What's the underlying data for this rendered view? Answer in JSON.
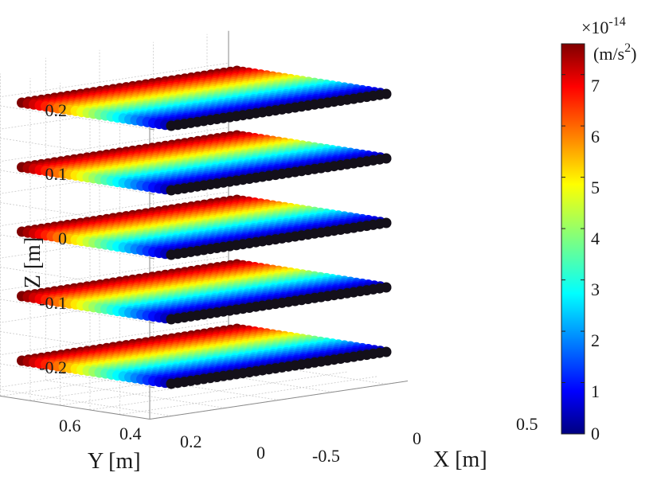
{
  "chart_data": {
    "type": "scatter",
    "subtype": "3d-scatter",
    "xlabel": "X [m]",
    "ylabel": "Y [m]",
    "zlabel": "Z [m]",
    "x_ticks": [
      "-0.5",
      "0",
      "0.5"
    ],
    "y_ticks": [
      "0.6",
      "0.4",
      "0.2",
      "0"
    ],
    "z_ticks": [
      "0.2",
      "0.1",
      "0",
      "-0.1",
      "-0.2"
    ],
    "xlim": [
      -0.6,
      0.6
    ],
    "ylim": [
      0,
      0.6
    ],
    "zlim": [
      -0.25,
      0.25
    ],
    "grid": true,
    "colormap": "jet",
    "colorbar": {
      "label": "(m/s",
      "label_exp": "2",
      "label_close": ")",
      "scale_prefix": "×10",
      "scale_exp": "-14",
      "ticks": [
        "7",
        "6",
        "5",
        "4",
        "3",
        "2",
        "1",
        "0"
      ],
      "range": [
        0,
        7.6
      ]
    },
    "layers_z": [
      0.2,
      0.1,
      0,
      -0.1,
      -0.2
    ],
    "series": [
      {
        "x_range": [
          -0.5,
          0.5
        ],
        "y_range": [
          0,
          0.5
        ],
        "color_value_range": [
          0,
          7.6
        ],
        "note_visible": "color varies with Y: dark (0) at Y=0, dark red (~7.6) at Y=0.5"
      }
    ]
  }
}
